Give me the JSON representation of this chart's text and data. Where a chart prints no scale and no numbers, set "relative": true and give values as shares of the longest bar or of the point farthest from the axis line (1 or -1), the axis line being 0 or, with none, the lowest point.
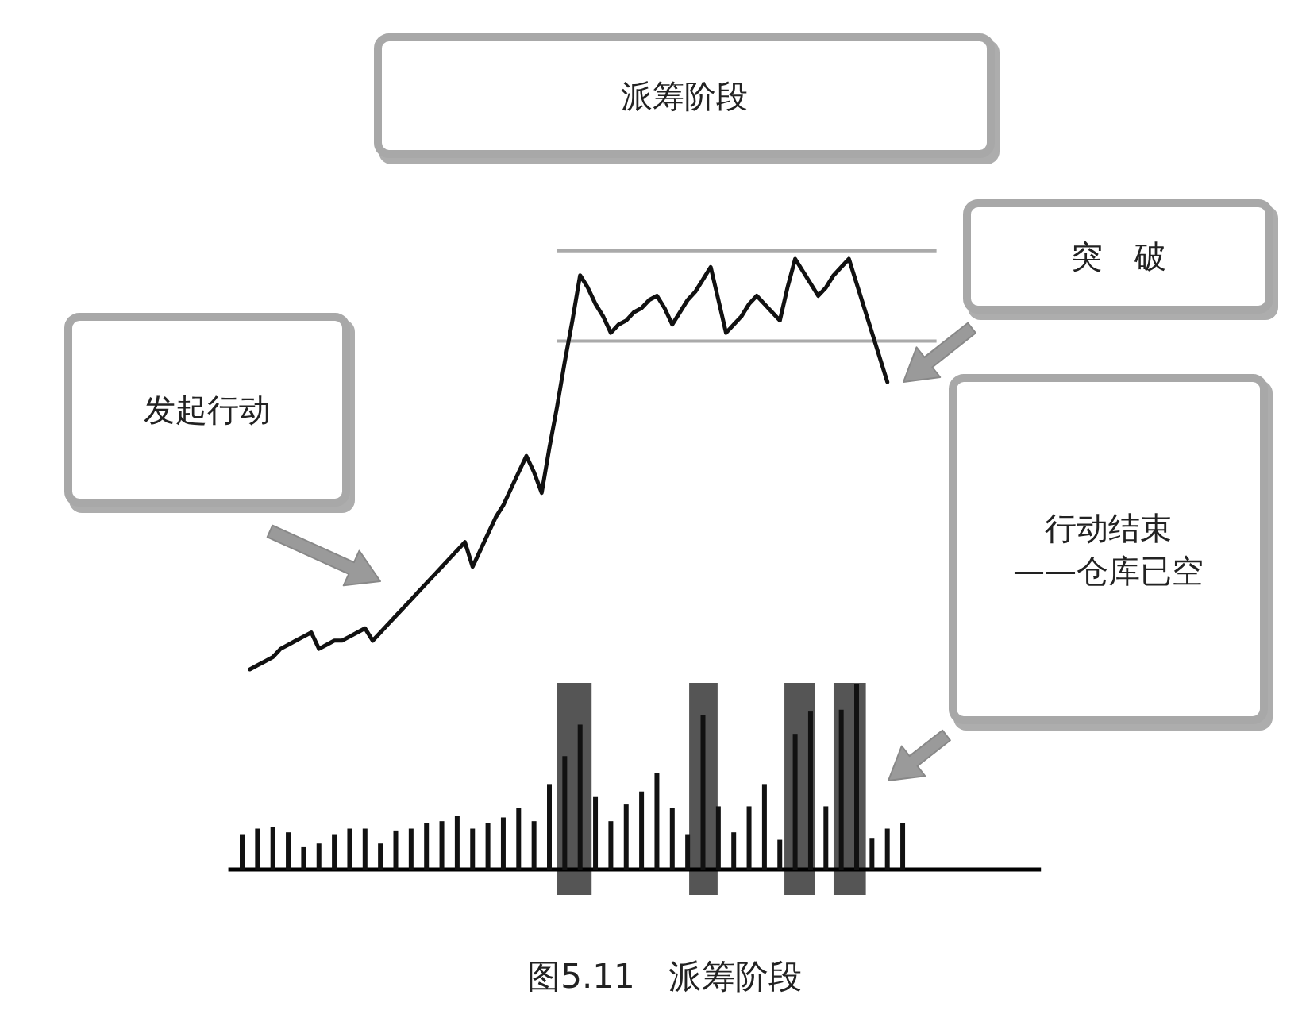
{
  "chart_data": [
    {
      "type": "line",
      "relative": true,
      "title": "图5.11　派筹阶段",
      "annotations": [
        "派筹阶段",
        "发起行动",
        "突　破",
        "行动结束\n——仓库已空"
      ],
      "categories": [
        null,
        null,
        null,
        null,
        null,
        null,
        null,
        null,
        null,
        null,
        null,
        null,
        null,
        null,
        null,
        null,
        null,
        null,
        null,
        null,
        null,
        null,
        null,
        null,
        null,
        null,
        null,
        null,
        null,
        null,
        null,
        null,
        null,
        null,
        null,
        null,
        null,
        null,
        null,
        null,
        null,
        null,
        null,
        null,
        null,
        null,
        null,
        null,
        null,
        null,
        null,
        null,
        null,
        null,
        null,
        null,
        null,
        null,
        null,
        null,
        null,
        null,
        null,
        null,
        null,
        null,
        null,
        null,
        null,
        null,
        null,
        null,
        null,
        null,
        null,
        null,
        null,
        null,
        null,
        null,
        null,
        null,
        null,
        null
      ],
      "series": [
        {
          "color": "#111111",
          "values": [
            0,
            0.01,
            0.02,
            0.03,
            0.05,
            0.06,
            0.07,
            0.08,
            0.09,
            0.05,
            0.06,
            0.07,
            0.07,
            0.08,
            0.09,
            0.1,
            0.07,
            0.09,
            0.11,
            0.13,
            0.15,
            0.17,
            0.19,
            0.21,
            0.23,
            0.25,
            0.27,
            0.29,
            0.31,
            0.25,
            0.29,
            0.33,
            0.37,
            0.4,
            0.44,
            0.48,
            0.52,
            0.48,
            0.43,
            0.54,
            0.64,
            0.75,
            0.85,
            0.96,
            0.93,
            0.89,
            0.86,
            0.82,
            0.84,
            0.85,
            0.87,
            0.88,
            0.9,
            0.91,
            0.88,
            0.84,
            0.87,
            0.9,
            0.92,
            0.95,
            0.98,
            0.9,
            0.82,
            0.84,
            0.86,
            0.89,
            0.91,
            0.89,
            0.87,
            0.85,
            0.93,
            1,
            0.97,
            0.94,
            0.91,
            0.93,
            0.96,
            0.98,
            1,
            0.94,
            0.88,
            0.82,
            0.76,
            0.7
          ]
        }
      ],
      "line_style": "solid",
      "marker": "none",
      "ref_lines": [
        {
          "axis": "y",
          "value": 0.8,
          "color": "#aaaaaa"
        }
      ]
    },
    {
      "type": "bar",
      "relative": true,
      "categories": [
        null,
        null,
        null,
        null,
        null,
        null,
        null,
        null,
        null,
        null,
        null,
        null,
        null,
        null,
        null,
        null,
        null,
        null,
        null,
        null,
        null,
        null,
        null,
        null,
        null,
        null,
        null,
        null,
        null,
        null,
        null,
        null,
        null,
        null,
        null,
        null,
        null,
        null,
        null,
        null,
        null,
        null,
        null,
        null
      ],
      "series": [
        {
          "color": "#111111",
          "values": [
            0.19,
            0.22,
            0.23,
            0.2,
            0.12,
            0.14,
            0.19,
            0.22,
            0.22,
            0.14,
            0.21,
            0.22,
            0.25,
            0.26,
            0.29,
            0.22,
            0.25,
            0.28,
            0.33,
            0.26,
            0.46,
            0.61,
            0.78,
            0.39,
            0.26,
            0.35,
            0.42,
            0.52,
            0.33,
            0.19,
            0.83,
            0.34,
            0.2,
            0.34,
            0.46,
            0.16,
            0.73,
            0.85,
            0.34,
            0.86,
            1,
            0.17,
            0.22,
            0.25
          ]
        }
      ]
    }
  ]
}
